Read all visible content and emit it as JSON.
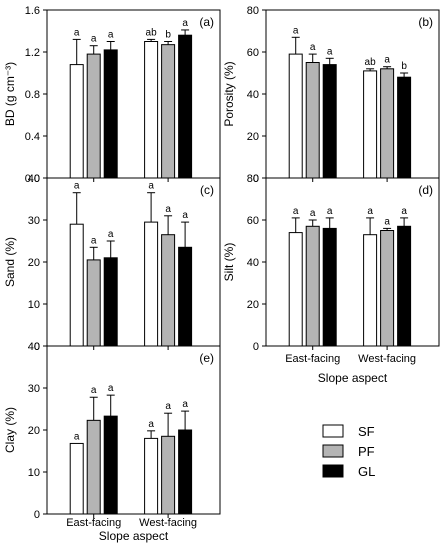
{
  "legend": {
    "entries": [
      {
        "label": "SF",
        "color": "#ffffff"
      },
      {
        "label": "PF",
        "color": "#b4b4b4"
      },
      {
        "label": "GL",
        "color": "#000000"
      }
    ]
  },
  "chart_data": [
    {
      "type": "bar",
      "panel": "(a)",
      "ylabel": "BD (g cm⁻³)",
      "xlabel": "",
      "categories": [
        "East-facing",
        "West-facing"
      ],
      "ylim": [
        0,
        1.6
      ],
      "yticks": [
        0.0,
        0.4,
        0.8,
        1.2,
        1.6
      ],
      "tick_decimals": 1,
      "series": [
        {
          "name": "SF",
          "values": [
            1.08,
            1.3
          ],
          "errors": [
            0.24,
            0.02
          ],
          "letters": [
            "a",
            "ab"
          ]
        },
        {
          "name": "PF",
          "values": [
            1.18,
            1.27
          ],
          "errors": [
            0.08,
            0.03
          ],
          "letters": [
            "a",
            "b"
          ]
        },
        {
          "name": "GL",
          "values": [
            1.22,
            1.36
          ],
          "errors": [
            0.08,
            0.05
          ],
          "letters": [
            "a",
            "a"
          ]
        }
      ]
    },
    {
      "type": "bar",
      "panel": "(b)",
      "ylabel": "Porosity (%)",
      "xlabel": "Slope aspect",
      "categories": [
        "East-facing",
        "West-facing"
      ],
      "ylim": [
        0,
        80
      ],
      "yticks": [
        0,
        20,
        40,
        60,
        80
      ],
      "tick_decimals": 0,
      "series": [
        {
          "name": "SF",
          "values": [
            59,
            51
          ],
          "errors": [
            8,
            1
          ],
          "letters": [
            "a",
            "ab"
          ]
        },
        {
          "name": "PF",
          "values": [
            55,
            52
          ],
          "errors": [
            4,
            1
          ],
          "letters": [
            "a",
            "a"
          ]
        },
        {
          "name": "GL",
          "values": [
            54,
            48
          ],
          "errors": [
            3,
            2
          ],
          "letters": [
            "a",
            "b"
          ]
        }
      ]
    },
    {
      "type": "bar",
      "panel": "(c)",
      "ylabel": "Sand (%)",
      "xlabel": "",
      "categories": [
        "East-facing",
        "West-facing"
      ],
      "ylim": [
        0,
        40
      ],
      "yticks": [
        0,
        10,
        20,
        30,
        40
      ],
      "tick_decimals": 0,
      "series": [
        {
          "name": "SF",
          "values": [
            29,
            29.5
          ],
          "errors": [
            7.5,
            7
          ],
          "letters": [
            "a",
            "a"
          ]
        },
        {
          "name": "PF",
          "values": [
            20.5,
            26.5
          ],
          "errors": [
            3,
            4.5
          ],
          "letters": [
            "a",
            "a"
          ]
        },
        {
          "name": "GL",
          "values": [
            21,
            23.5
          ],
          "errors": [
            4,
            6
          ],
          "letters": [
            "a",
            "a"
          ]
        }
      ]
    },
    {
      "type": "bar",
      "panel": "(d)",
      "ylabel": "Silt (%)",
      "xlabel": "Slope aspect",
      "categories": [
        "East-facing",
        "West-facing"
      ],
      "ylim": [
        0,
        80
      ],
      "yticks": [
        0,
        20,
        40,
        60,
        80
      ],
      "tick_decimals": 0,
      "series": [
        {
          "name": "SF",
          "values": [
            54,
            53
          ],
          "errors": [
            7,
            8
          ],
          "letters": [
            "a",
            "a"
          ]
        },
        {
          "name": "PF",
          "values": [
            57,
            55
          ],
          "errors": [
            3,
            1
          ],
          "letters": [
            "a",
            "a"
          ]
        },
        {
          "name": "GL",
          "values": [
            56,
            57
          ],
          "errors": [
            5,
            4
          ],
          "letters": [
            "a",
            "a"
          ]
        }
      ]
    },
    {
      "type": "bar",
      "panel": "(e)",
      "ylabel": "Clay (%)",
      "xlabel": "Slope aspect",
      "categories": [
        "East-facing",
        "West-facing"
      ],
      "ylim": [
        0,
        40
      ],
      "yticks": [
        0,
        10,
        20,
        30,
        40
      ],
      "tick_decimals": 0,
      "series": [
        {
          "name": "SF",
          "values": [
            16.8,
            18
          ],
          "errors": [
            0,
            1.8
          ],
          "letters": [
            "a",
            "a"
          ]
        },
        {
          "name": "PF",
          "values": [
            22.3,
            18.5
          ],
          "errors": [
            5.5,
            5.5
          ],
          "letters": [
            "a",
            "a"
          ]
        },
        {
          "name": "GL",
          "values": [
            23.3,
            20
          ],
          "errors": [
            5,
            4.5
          ],
          "letters": [
            "a",
            "a"
          ]
        }
      ]
    }
  ]
}
